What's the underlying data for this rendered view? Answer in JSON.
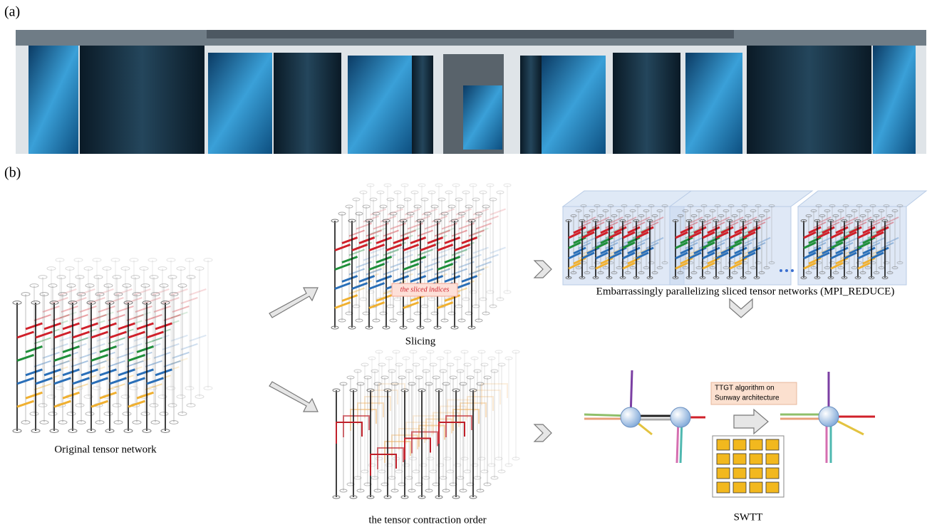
{
  "panel_a": {
    "label": "(a)"
  },
  "panel_b": {
    "label": "(b)",
    "original": {
      "caption": "Original tensor network"
    },
    "slicing": {
      "caption": "Slicing",
      "annotation": "the sliced indices"
    },
    "parallel": {
      "caption": "Embarrassingly parallelizing sliced tensor networks (MPI_REDUCE)"
    },
    "contraction": {
      "caption": "the tensor contraction order"
    },
    "swtt": {
      "box": [
        "TTGT algorithm on",
        "Sunway architecture"
      ],
      "caption": "SWTT"
    }
  }
}
